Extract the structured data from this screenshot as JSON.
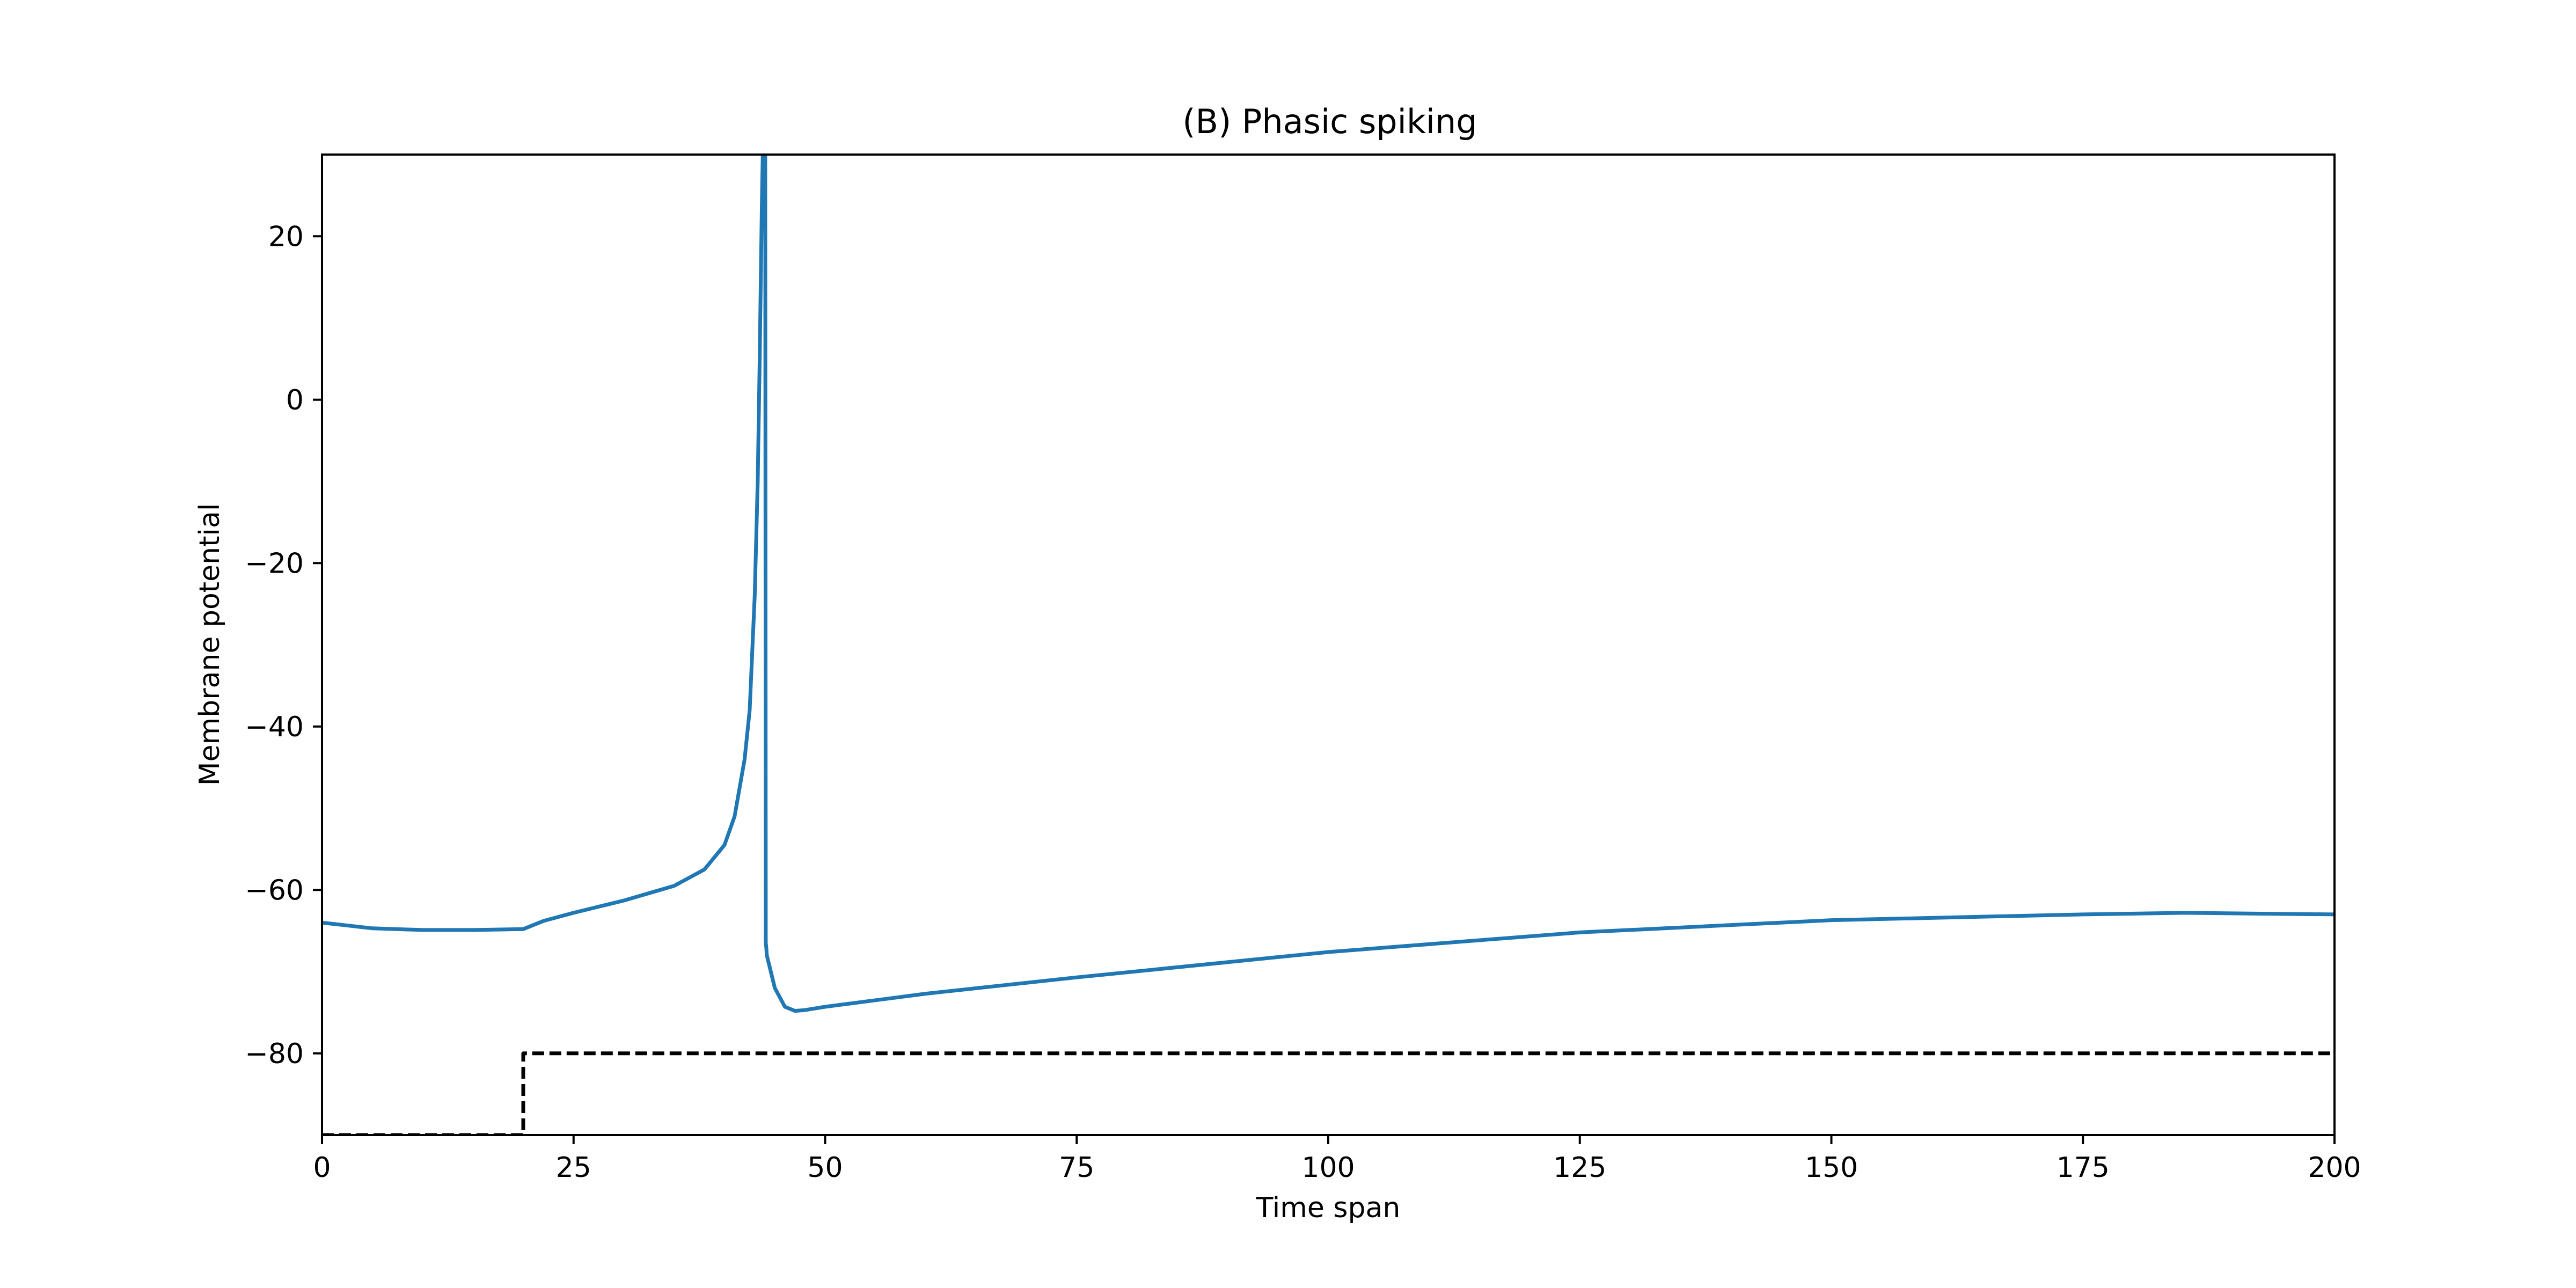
{
  "chart_data": {
    "type": "line",
    "title": "(B) Phasic spiking",
    "xlabel": "Time span",
    "ylabel": "Membrane potential",
    "xlim": [
      0,
      200
    ],
    "ylim": [
      -90,
      30
    ],
    "xticks": [
      0,
      25,
      50,
      75,
      100,
      125,
      150,
      175,
      200
    ],
    "yticks": [
      -80,
      -60,
      -40,
      -20,
      0,
      20
    ],
    "grid": false,
    "legend": "none",
    "series": [
      {
        "style": "solid",
        "color": "#1f77b4",
        "x": [
          0,
          5,
          10,
          15,
          20,
          22,
          25,
          30,
          35,
          38,
          40,
          41,
          42,
          42.5,
          43,
          43.3,
          43.5,
          43.7,
          43.8,
          43.9,
          44.0,
          44.05,
          44.1,
          44.15,
          44.2,
          45,
          46,
          47,
          48,
          50,
          60,
          75,
          100,
          125,
          150,
          175,
          185,
          200
        ],
        "y": [
          -64,
          -64.7,
          -64.9,
          -64.9,
          -64.8,
          -63.8,
          -62.8,
          -61.3,
          -59.5,
          -57.5,
          -54.5,
          -51,
          -44,
          -38,
          -24,
          -10,
          5,
          23,
          30,
          30,
          30,
          30,
          -66.5,
          -67,
          -68,
          -72,
          -74.3,
          -74.8,
          -74.7,
          -74.3,
          -72.7,
          -70.7,
          -67.6,
          -65.2,
          -63.7,
          -63,
          -62.8,
          -63
        ]
      },
      {
        "style": "dashed",
        "color": "#000000",
        "x": [
          0,
          20,
          20,
          200
        ],
        "y": [
          -90,
          -90,
          -80,
          -80
        ]
      }
    ]
  }
}
